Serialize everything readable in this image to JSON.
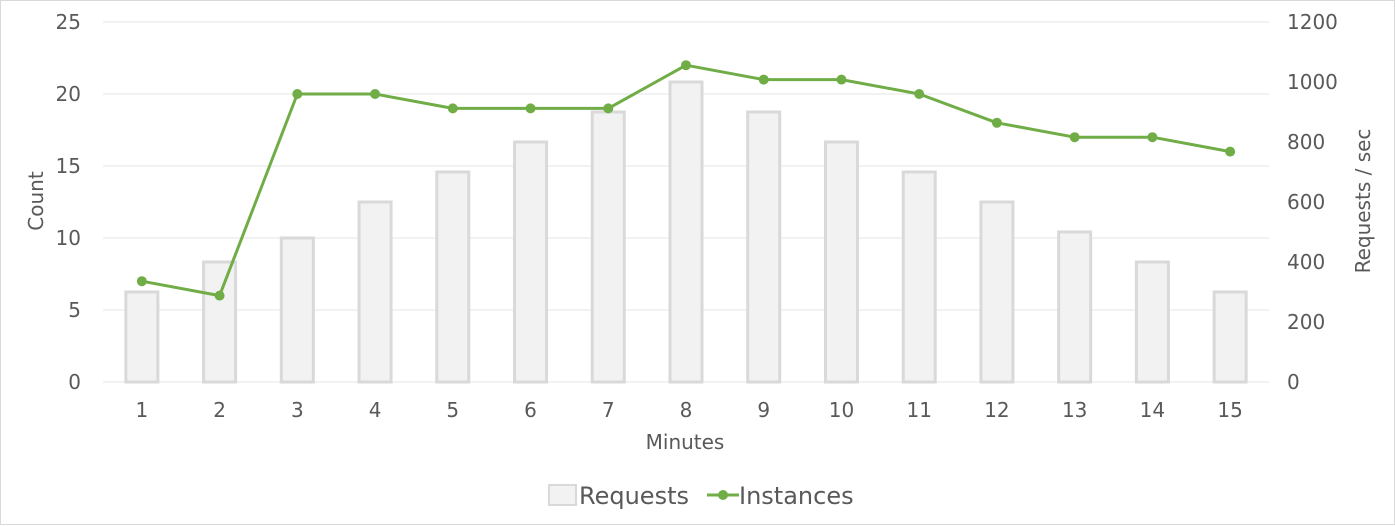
{
  "chart_data": {
    "type": "bar",
    "categories": [
      "1",
      "2",
      "3",
      "4",
      "5",
      "6",
      "7",
      "8",
      "9",
      "10",
      "11",
      "12",
      "13",
      "14",
      "15"
    ],
    "series": [
      {
        "name": "Requests",
        "type": "bar",
        "axis": "right",
        "values": [
          300,
          400,
          480,
          600,
          700,
          800,
          900,
          1000,
          900,
          800,
          700,
          600,
          500,
          400,
          300
        ],
        "color": "#f2f2f2",
        "border": "#d9d9d9"
      },
      {
        "name": "Instances",
        "type": "line",
        "axis": "left",
        "values": [
          7,
          6,
          20,
          20,
          19,
          19,
          19,
          22,
          21,
          21,
          20,
          18,
          17,
          17,
          16
        ],
        "color": "#70ad47"
      }
    ],
    "xlabel": "Minutes",
    "ylabel_left": "Count",
    "ylabel_right": "Requests / sec",
    "ylim_left": [
      0,
      25
    ],
    "yticks_left": [
      0,
      5,
      10,
      15,
      20,
      25
    ],
    "ylim_right": [
      0,
      1200
    ],
    "yticks_right": [
      0,
      200,
      400,
      600,
      800,
      1000,
      1200
    ],
    "grid": true,
    "legend_position": "bottom"
  }
}
